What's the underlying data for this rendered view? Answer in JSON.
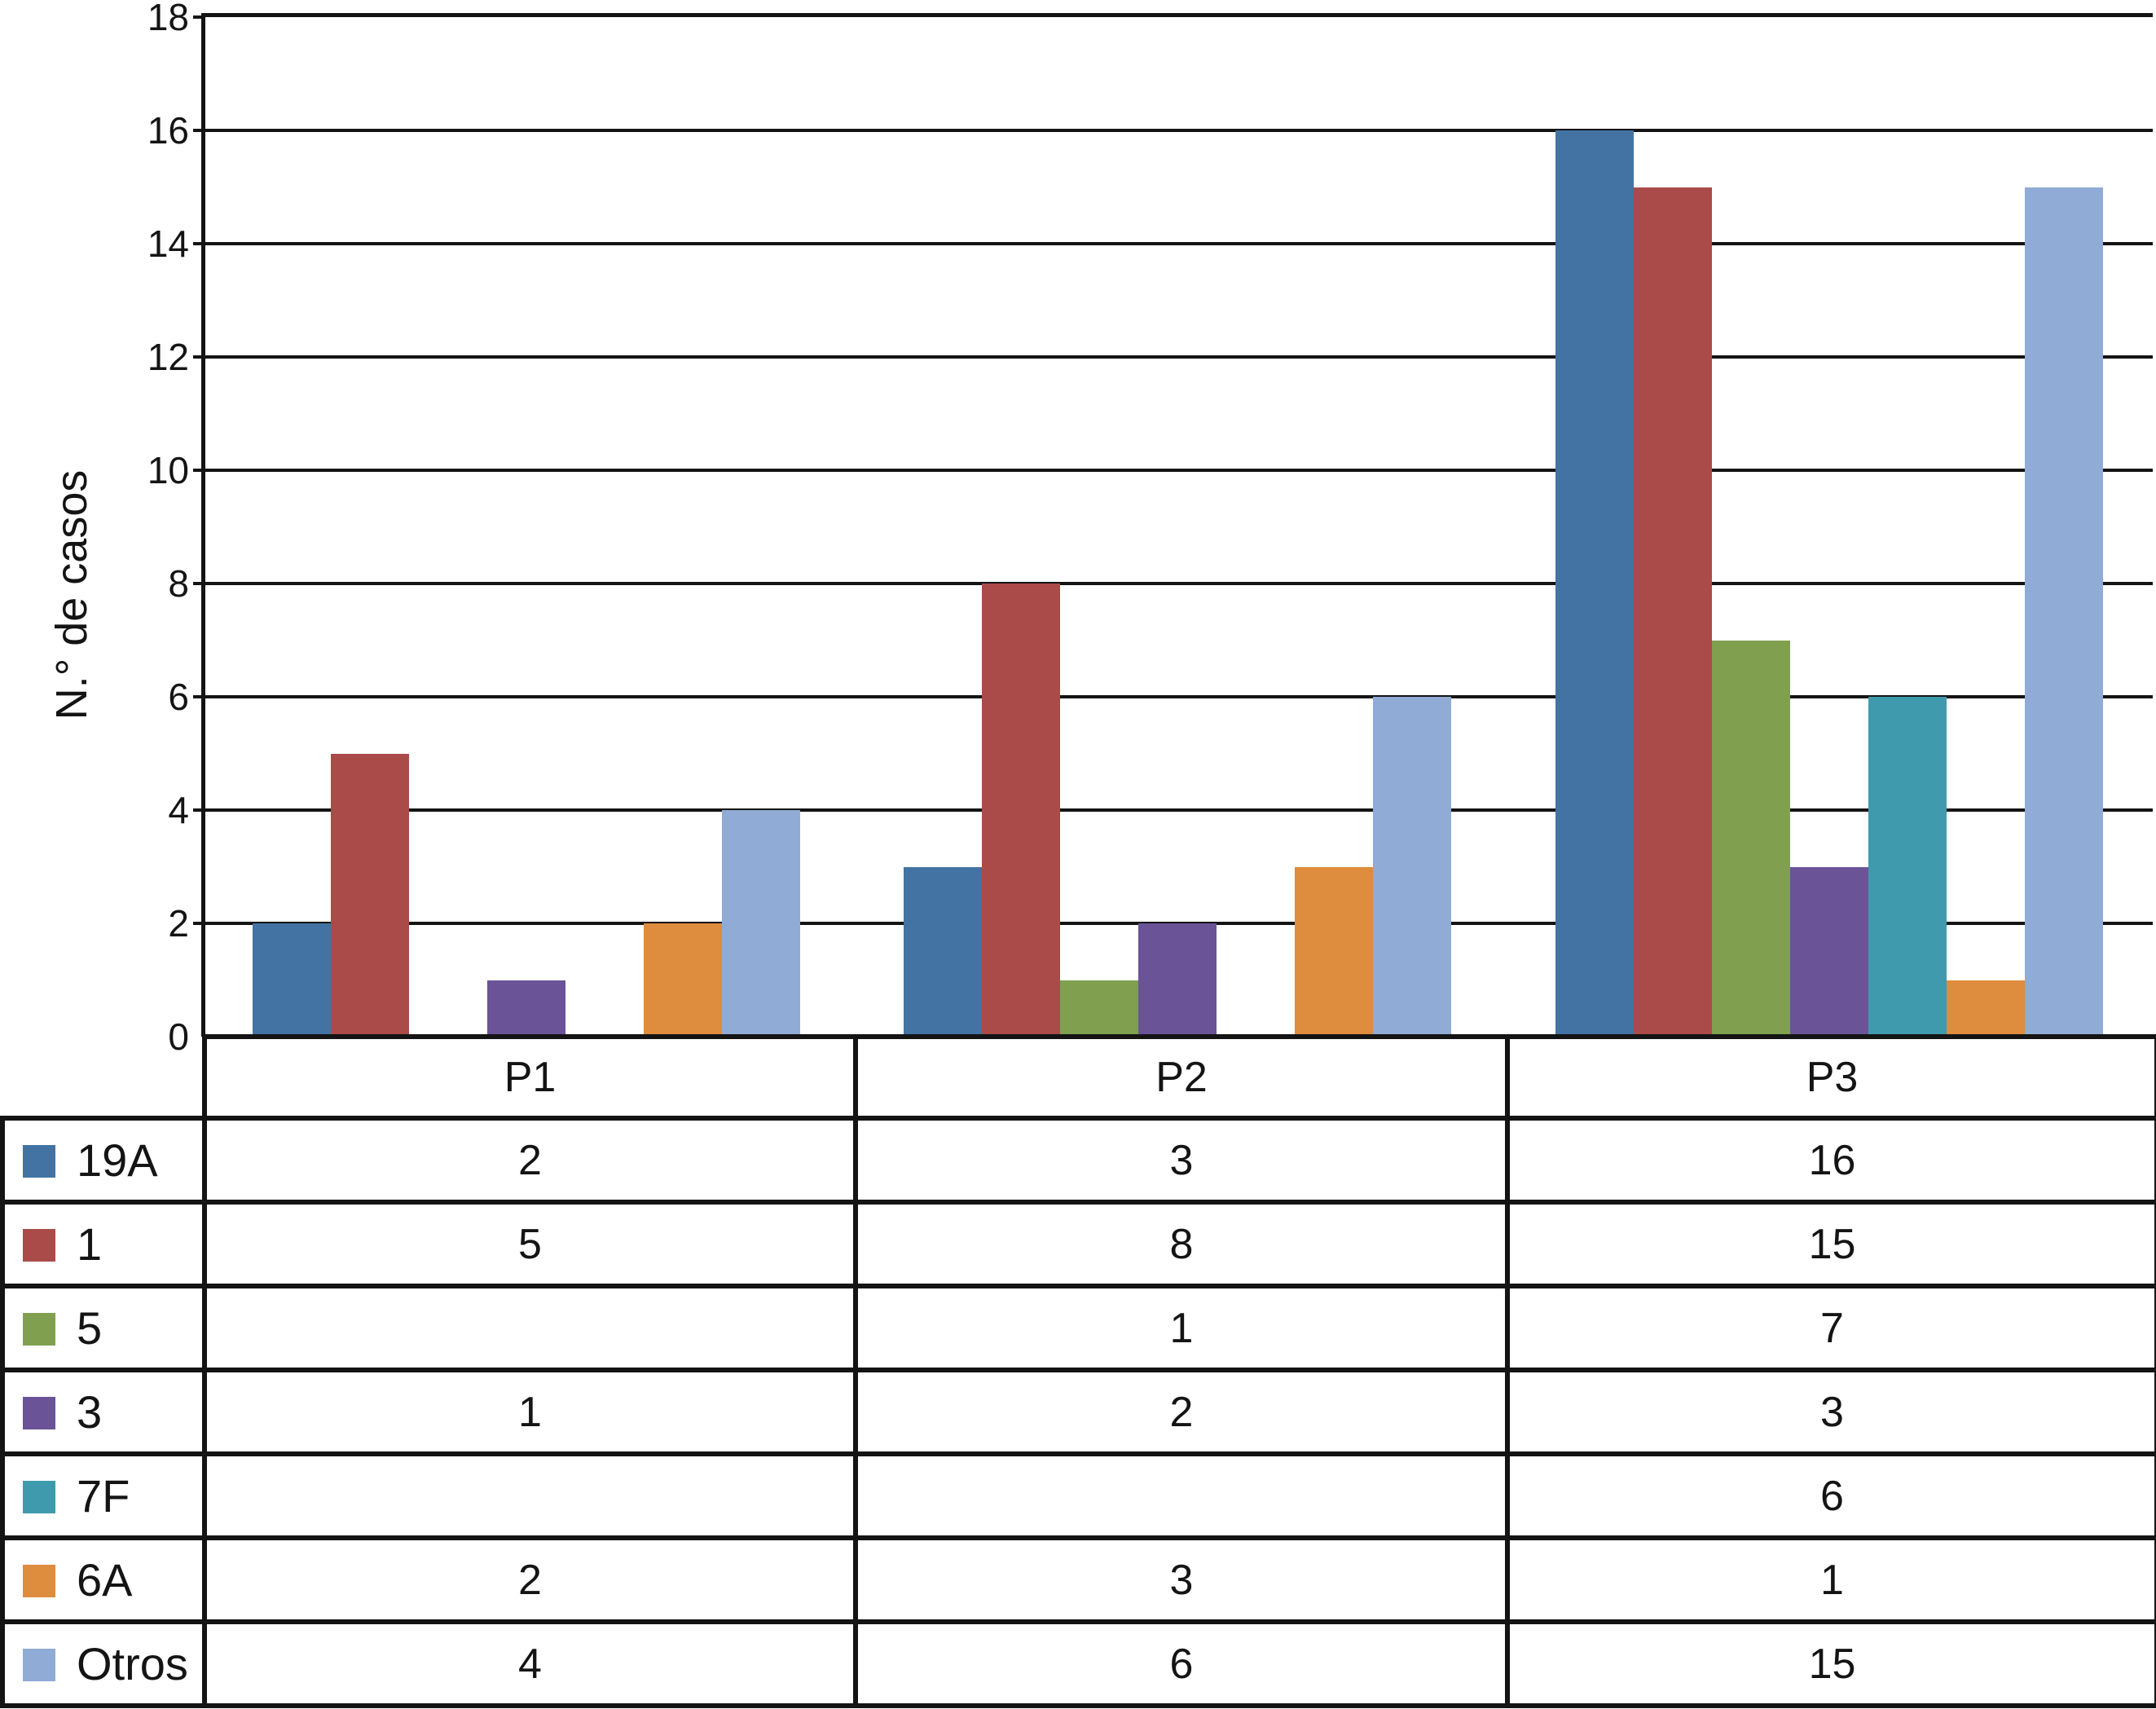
{
  "chart_data": {
    "type": "bar",
    "title": "",
    "ylabel": "N.° de casos",
    "xlabel": "",
    "ylim": [
      0,
      18
    ],
    "ytick_step": 2,
    "yticks": [
      18,
      16,
      14,
      12,
      10,
      8,
      6,
      4,
      2,
      0
    ],
    "grid": true,
    "legend_position": "table-left",
    "categories": [
      "P1",
      "P2",
      "P3"
    ],
    "series": [
      {
        "name": "19A",
        "color": "#4273A2",
        "values": [
          2,
          3,
          16
        ]
      },
      {
        "name": "1",
        "color": "#AA4B49",
        "values": [
          5,
          8,
          15
        ]
      },
      {
        "name": "5",
        "color": "#80A04F",
        "values": [
          0,
          1,
          7
        ]
      },
      {
        "name": "3",
        "color": "#6A5397",
        "values": [
          1,
          2,
          3
        ]
      },
      {
        "name": "7F",
        "color": "#3F9AAD",
        "values": [
          0,
          0,
          6
        ]
      },
      {
        "name": "6A",
        "color": "#DE8C3D",
        "values": [
          2,
          3,
          1
        ]
      },
      {
        "name": "Otros",
        "color": "#90ABD5",
        "values": [
          4,
          6,
          15
        ]
      }
    ]
  },
  "table": {
    "columns": [
      "P1",
      "P2",
      "P3"
    ],
    "rows": [
      {
        "label": "19A",
        "cells": [
          "2",
          "3",
          "16"
        ]
      },
      {
        "label": "1",
        "cells": [
          "5",
          "8",
          "15"
        ]
      },
      {
        "label": "5",
        "cells": [
          "",
          "1",
          "7"
        ]
      },
      {
        "label": "3",
        "cells": [
          "1",
          "2",
          "3"
        ]
      },
      {
        "label": "7F",
        "cells": [
          "",
          "",
          "6"
        ]
      },
      {
        "label": "6A",
        "cells": [
          "2",
          "3",
          "1"
        ]
      },
      {
        "label": "Otros",
        "cells": [
          "4",
          "6",
          "15"
        ]
      }
    ]
  },
  "style": {
    "line_color": "#141414",
    "background": "#ffffff"
  }
}
